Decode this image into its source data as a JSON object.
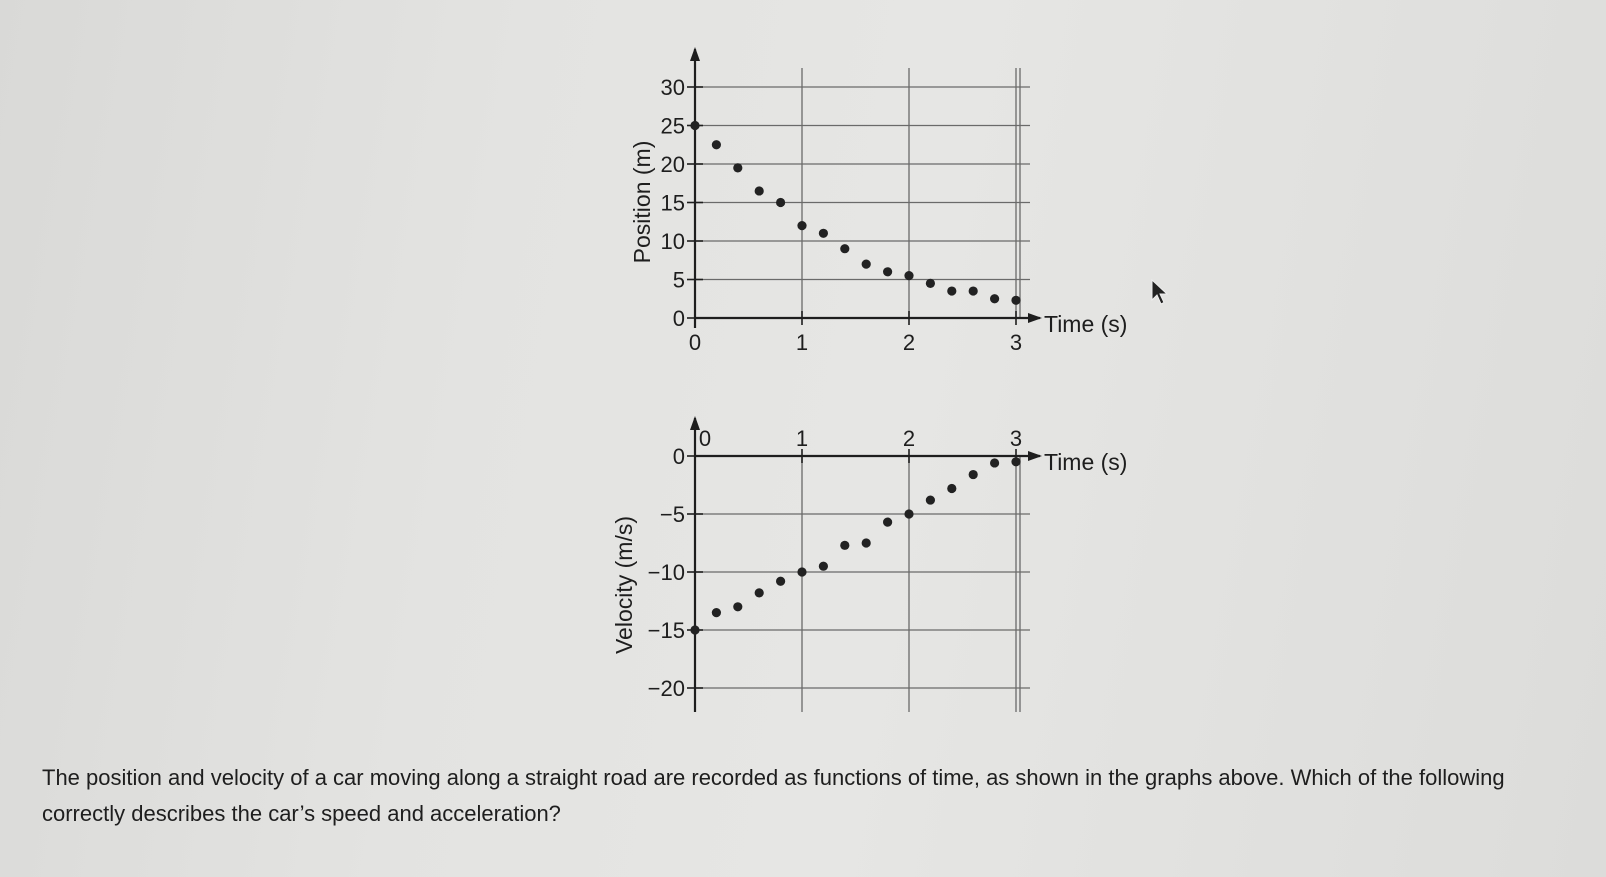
{
  "chart_data": [
    {
      "type": "scatter",
      "title": "",
      "xlabel": "Time (s)",
      "ylabel": "Position (m)",
      "xlim": [
        0,
        3
      ],
      "ylim": [
        0,
        30
      ],
      "x_ticks": [
        "0",
        "1",
        "2",
        "3"
      ],
      "y_ticks": [
        "0",
        "5",
        "10",
        "15",
        "20",
        "25",
        "30"
      ],
      "grid": true,
      "series": [
        {
          "x": [
            0,
            0.2,
            0.4,
            0.6,
            0.8,
            1.0,
            1.2,
            1.4,
            1.6,
            1.8,
            2.0,
            2.2,
            2.4,
            2.6,
            2.8,
            3.0
          ],
          "y": [
            25,
            22.5,
            19.5,
            16.5,
            15,
            12,
            11,
            9,
            7,
            6,
            5.5,
            4.5,
            3.5,
            3.5,
            2.5,
            2.3
          ]
        }
      ]
    },
    {
      "type": "scatter",
      "title": "",
      "xlabel": "Time (s)",
      "ylabel": "Velocity (m/s)",
      "xlim": [
        0,
        3
      ],
      "ylim": [
        -20,
        0
      ],
      "x_ticks": [
        "0",
        "1",
        "2",
        "3"
      ],
      "y_ticks": [
        "0",
        "−5",
        "−10",
        "−15",
        "−20"
      ],
      "grid": true,
      "series": [
        {
          "x": [
            0,
            0.2,
            0.4,
            0.6,
            0.8,
            1.0,
            1.2,
            1.4,
            1.6,
            1.8,
            2.0,
            2.2,
            2.4,
            2.6,
            2.8,
            3.0
          ],
          "y": [
            -15,
            -13.5,
            -13,
            -11.8,
            -10.8,
            -10,
            -9.5,
            -7.7,
            -7.5,
            -5.7,
            -5,
            -3.8,
            -2.8,
            -1.6,
            -0.6,
            -0.5
          ]
        }
      ]
    }
  ],
  "question": {
    "text": "The position and velocity of a car moving along a straight road are recorded as functions of time, as shown in the graphs above. Which of the following correctly describes the car’s speed and acceleration?"
  }
}
